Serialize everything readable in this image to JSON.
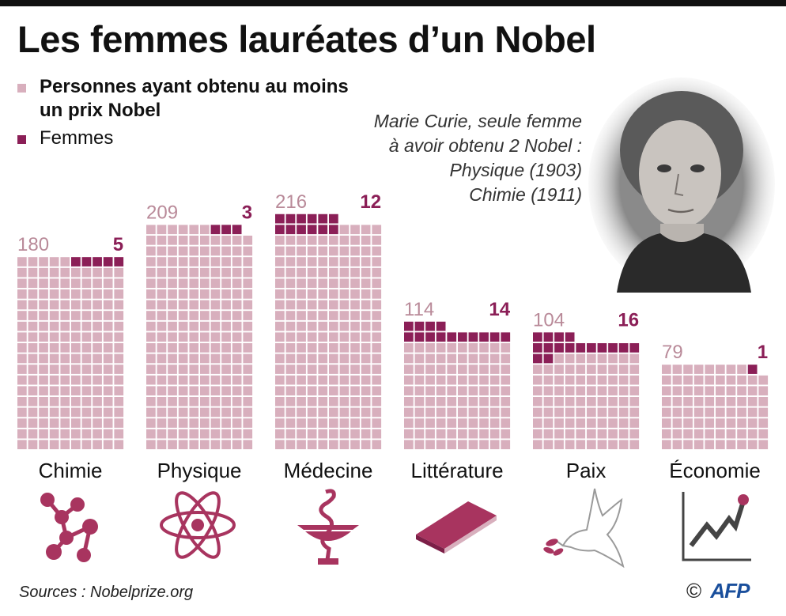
{
  "title": "Les femmes lauréates d’un Nobel",
  "legend": {
    "total_label": "Personnes ayant obtenu au moins",
    "total_label_line2": "un prix Nobel",
    "women_label": "Femmes"
  },
  "quote": {
    "line1": "Marie Curie, seule femme",
    "line2": "à avoir obtenu 2 Nobel :",
    "line3": "Physique (1903)",
    "line4": "Chimie (1911)"
  },
  "colors": {
    "total": "#d8afbd",
    "women": "#8b1f57",
    "total_text": "#b98a99",
    "icon": "#a8345f"
  },
  "chart_data": {
    "type": "bar",
    "categories": [
      "Chimie",
      "Physique",
      "Médecine",
      "Littérature",
      "Paix",
      "Économie"
    ],
    "series": [
      {
        "name": "Personnes ayant obtenu au moins un prix Nobel",
        "values": [
          180,
          209,
          216,
          114,
          104,
          79
        ]
      },
      {
        "name": "Femmes",
        "values": [
          5,
          3,
          12,
          14,
          16,
          1
        ]
      }
    ],
    "icons": [
      "molecule-icon",
      "atom-icon",
      "caduceus-icon",
      "book-icon",
      "dove-icon",
      "growth-chart-icon"
    ]
  },
  "footer": {
    "sources": "Sources : Nobelprize.org",
    "copyright": "©",
    "agency": "AFP"
  }
}
